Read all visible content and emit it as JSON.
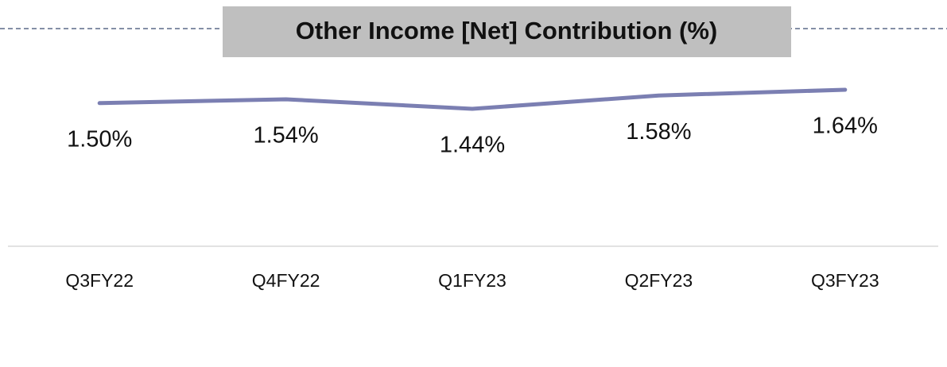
{
  "chart_data": {
    "type": "line",
    "title": "Other Income [Net] Contribution (%)",
    "categories": [
      "Q3FY22",
      "Q4FY22",
      "Q1FY23",
      "Q2FY23",
      "Q3FY23"
    ],
    "series": [
      {
        "name": "Other Income [Net] Contribution",
        "color": "#7b7fb2",
        "values": [
          1.5,
          1.54,
          1.44,
          1.58,
          1.64
        ],
        "value_labels": [
          "1.50%",
          "1.54%",
          "1.44%",
          "1.58%",
          "1.64%"
        ]
      }
    ]
  }
}
